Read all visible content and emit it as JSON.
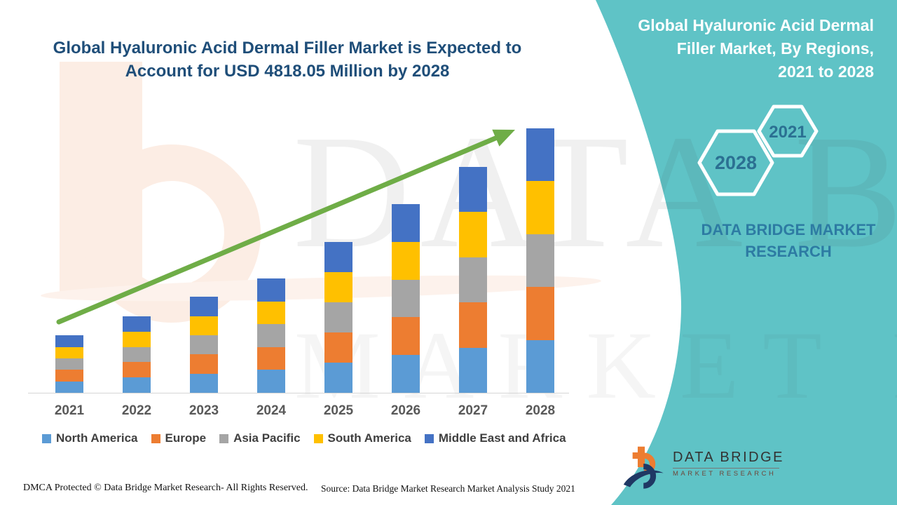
{
  "title": {
    "lines": [
      "Global Hyaluronic Acid Dermal Filler Market is Expected to",
      "Account for USD 4818.05 Million by 2028"
    ]
  },
  "sidebar": {
    "title_lines": [
      "Global Hyaluronic Acid Dermal",
      "Filler Market, By Regions,",
      "2021 to 2028"
    ],
    "hexagons": [
      {
        "label": "2028"
      },
      {
        "label": "2021"
      }
    ],
    "brand_lines": [
      "DATA BRIDGE MARKET",
      "RESEARCH"
    ]
  },
  "watermarks": {
    "big_text": "DATA BRIDGE",
    "small_text": "MARKET RESEARCH"
  },
  "logo": {
    "name_text": "DATA BRIDGE",
    "sub_text": "MARKET RESEARCH"
  },
  "footer": {
    "dmca": "DMCA Protected © Data Bridge Market Research- All Rights Reserved.",
    "source": "Source: Data Bridge Market Research Market Analysis Study 2021"
  },
  "colors": {
    "teal_panel": "#5FC3C6",
    "title_blue": "#1F4E79",
    "steel_blue_text": "#2D7BA3",
    "hex_year_text": "#2B7092",
    "arrow_green": "#6FAD47",
    "axis_label_gray": "#595959",
    "legend_text_gray": "#3F3F3F",
    "logo_orange": "#ED7D31",
    "logo_navy": "#1F3864"
  },
  "chart_data": {
    "type": "bar",
    "stacked": true,
    "unit": "USD Million",
    "categories": [
      "2021",
      "2022",
      "2023",
      "2024",
      "2025",
      "2026",
      "2027",
      "2028"
    ],
    "series": [
      {
        "name": "North America",
        "color": "#5B9BD5",
        "values": [
          209,
          279,
          350,
          417,
          550,
          688,
          823,
          963.61
        ]
      },
      {
        "name": "Europe",
        "color": "#ED7D31",
        "values": [
          209,
          279,
          350,
          417,
          550,
          688,
          823,
          963.61
        ]
      },
      {
        "name": "Asia Pacific",
        "color": "#A5A5A5",
        "values": [
          209,
          279,
          350,
          417,
          550,
          688,
          823,
          963.61
        ]
      },
      {
        "name": "South America",
        "color": "#FFC000",
        "values": [
          209,
          279,
          350,
          417,
          550,
          688,
          823,
          963.61
        ]
      },
      {
        "name": "Middle East and Africa",
        "color": "#4472C4",
        "values": [
          209,
          279,
          350,
          417,
          550,
          688,
          823,
          963.61
        ]
      }
    ],
    "totals": [
      1045,
      1395,
      1750,
      2085,
      2750,
      3440,
      4115,
      4818.05
    ],
    "axis_max": 4818.05,
    "xlabel": "",
    "ylabel": "",
    "gridlines": false,
    "legend_position": "bottom",
    "annotations": [
      "green upward trend arrow"
    ]
  }
}
